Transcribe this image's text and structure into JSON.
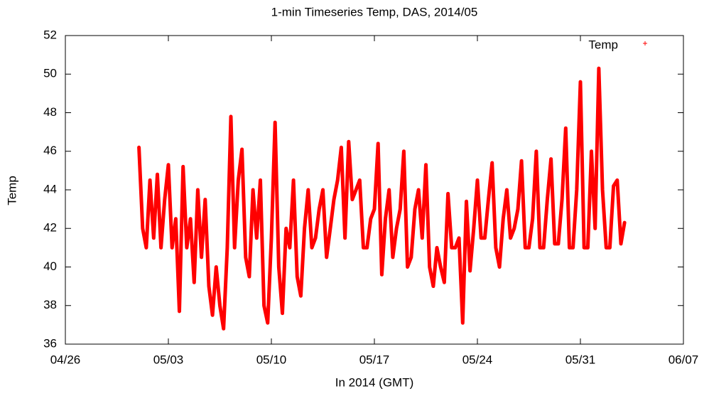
{
  "chart_data": {
    "type": "line",
    "title": "1-min Timeseries Temp, DAS, 2014/05",
    "xlabel": "In 2014 (GMT)",
    "ylabel": "Temp",
    "xlim": [
      0,
      42
    ],
    "xticks": [
      {
        "value": 0,
        "label": "04/26"
      },
      {
        "value": 7,
        "label": "05/03"
      },
      {
        "value": 14,
        "label": "05/10"
      },
      {
        "value": 21,
        "label": "05/17"
      },
      {
        "value": 28,
        "label": "05/24"
      },
      {
        "value": 35,
        "label": "05/31"
      },
      {
        "value": 42,
        "label": "06/07"
      }
    ],
    "ylim": [
      36,
      52
    ],
    "yticks": [
      36,
      38,
      40,
      42,
      44,
      46,
      48,
      50,
      52
    ],
    "legend": "upper right",
    "x": [
      5,
      5.25,
      5.5,
      5.75,
      6,
      6.25,
      6.5,
      6.75,
      7,
      7.25,
      7.5,
      7.75,
      8,
      8.25,
      8.5,
      8.75,
      9,
      9.25,
      9.5,
      9.75,
      10,
      10.25,
      10.5,
      10.75,
      11,
      11.25,
      11.5,
      11.75,
      12,
      12.25,
      12.5,
      12.75,
      13,
      13.25,
      13.5,
      13.75,
      14,
      14.25,
      14.5,
      14.75,
      15,
      15.25,
      15.5,
      15.75,
      16,
      16.25,
      16.5,
      16.75,
      17,
      17.25,
      17.5,
      17.75,
      18,
      18.25,
      18.5,
      18.75,
      19,
      19.25,
      19.5,
      19.75,
      20,
      20.25,
      20.5,
      20.75,
      21,
      21.25,
      21.5,
      21.75,
      22,
      22.25,
      22.5,
      22.75,
      23,
      23.25,
      23.5,
      23.75,
      24,
      24.25,
      24.5,
      24.75,
      25,
      25.25,
      25.5,
      25.75,
      26,
      26.25,
      26.5,
      26.75,
      27,
      27.25,
      27.5,
      27.75,
      28,
      28.25,
      28.5,
      28.75,
      29,
      29.25,
      29.5,
      29.75,
      30,
      30.25,
      30.5,
      30.75,
      31,
      31.25,
      31.5,
      31.75,
      32,
      32.25,
      32.5,
      32.75,
      33,
      33.25,
      33.5,
      33.75,
      34,
      34.25,
      34.5,
      34.75,
      35,
      35.25,
      35.5,
      35.75,
      36,
      36.25,
      36.5,
      36.75,
      37,
      37.25,
      37.5,
      37.75,
      38
    ],
    "series": [
      {
        "name": "Temp",
        "color": "#ff0000",
        "values": [
          46.2,
          42,
          41,
          44.5,
          41.5,
          44.8,
          41,
          43.5,
          45.3,
          41,
          42.5,
          37.7,
          45.2,
          41,
          42.5,
          39.2,
          44,
          40.5,
          43.5,
          39,
          37.5,
          40,
          38,
          36.8,
          41,
          47.8,
          41,
          44.5,
          46.1,
          40.5,
          39.5,
          44,
          41.5,
          44.5,
          38,
          37.1,
          41.5,
          47.5,
          40,
          37.6,
          42,
          41,
          44.5,
          39.5,
          38.5,
          42,
          44,
          41,
          41.5,
          43,
          44,
          40.5,
          42,
          43.5,
          44.5,
          46.2,
          41.5,
          46.5,
          43.5,
          44,
          44.5,
          41,
          41,
          42.5,
          43,
          46.4,
          39.6,
          42.5,
          44,
          40.5,
          42,
          43,
          46,
          40,
          40.5,
          43,
          44,
          41.5,
          45.3,
          40,
          39,
          41,
          40,
          39.2,
          43.8,
          41,
          41,
          41.5,
          37.1,
          43.4,
          39.8,
          42,
          44.5,
          41.5,
          41.5,
          43.5,
          45.4,
          41,
          40,
          42.5,
          44,
          41.5,
          42,
          43,
          45.5,
          41,
          41,
          42.5,
          46,
          41,
          41,
          43.5,
          45.6,
          41.2,
          41.2,
          43.5,
          47.2,
          41,
          41,
          44,
          49.6,
          41,
          41,
          46,
          42,
          50.3,
          44,
          41,
          41,
          44.2,
          44.5,
          41.2,
          42.3
        ]
      }
    ]
  }
}
